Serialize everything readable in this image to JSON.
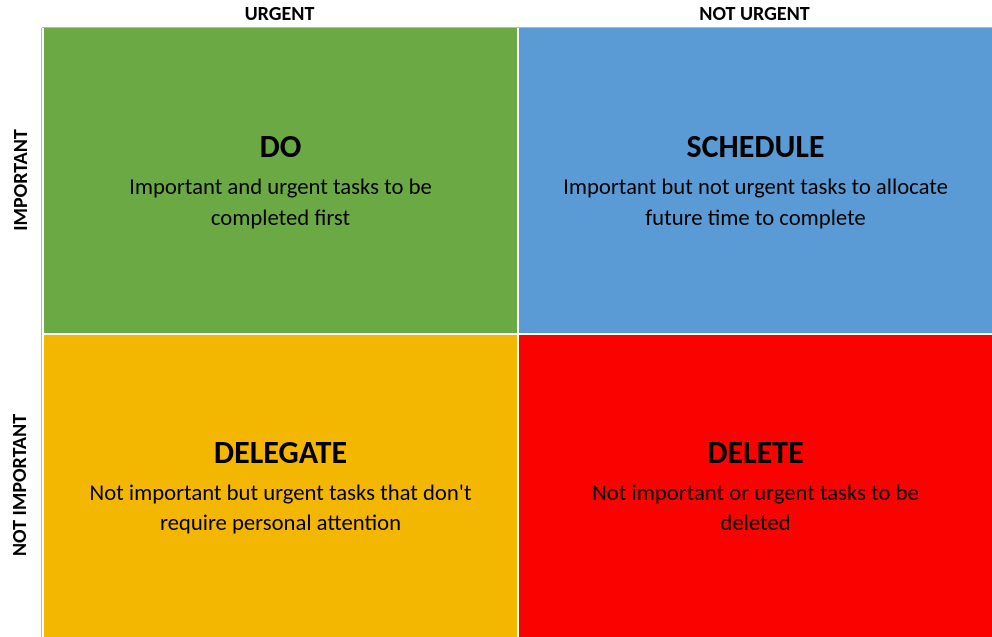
{
  "matrix": {
    "type": "infographic",
    "background_color": "#ffffff",
    "grid_border_color": "#b7b7b7",
    "cell_gap_color": "#ffffff",
    "header_fontsize_pt": 15,
    "row_header_fontsize_pt": 15,
    "title_fontsize_pt": 24,
    "desc_fontsize_pt": 17,
    "columns": {
      "urgent": "URGENT",
      "not_urgent": "NOT URGENT"
    },
    "rows": {
      "important": "IMPORTANT",
      "not_important": "NOT IMPORTANT"
    },
    "quadrants": {
      "do": {
        "title": "DO",
        "desc": "Important and urgent tasks to be completed first",
        "bg_color": "#6ba945"
      },
      "schedule": {
        "title": "SCHEDULE",
        "desc": "Important but not urgent tasks to allocate future time to complete",
        "bg_color": "#5a9bd5"
      },
      "delegate": {
        "title": "DELEGATE",
        "desc": "Not important but urgent tasks that don't require personal attention",
        "bg_color": "#f4b701"
      },
      "delete": {
        "title": "DELETE",
        "desc": "Not important or urgent tasks to be deleted",
        "bg_color": "#fa0200"
      }
    }
  }
}
